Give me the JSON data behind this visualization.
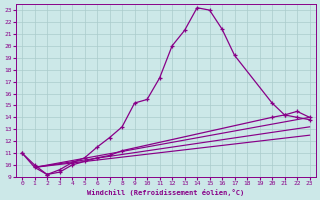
{
  "xlabel": "Windchill (Refroidissement éolien,°C)",
  "bg_color": "#cce8e8",
  "line_color": "#880088",
  "grid_color": "#aacccc",
  "xlim": [
    -0.5,
    23.5
  ],
  "ylim": [
    9,
    23.5
  ],
  "yticks": [
    9,
    10,
    11,
    12,
    13,
    14,
    15,
    16,
    17,
    18,
    19,
    20,
    21,
    22,
    23
  ],
  "xticks": [
    0,
    1,
    2,
    3,
    4,
    5,
    6,
    7,
    8,
    9,
    10,
    11,
    12,
    13,
    14,
    15,
    16,
    17,
    18,
    19,
    20,
    21,
    22,
    23
  ],
  "main_x": [
    0,
    1,
    2,
    3,
    4,
    5,
    6,
    7,
    8,
    9,
    10,
    11,
    12,
    13,
    14,
    15,
    16,
    17,
    20,
    21,
    22,
    23
  ],
  "main_y": [
    11.0,
    10.0,
    9.2,
    9.6,
    10.2,
    10.6,
    11.5,
    12.3,
    13.2,
    15.2,
    15.5,
    17.3,
    20.0,
    21.3,
    23.2,
    23.0,
    21.4,
    19.2,
    15.2,
    14.2,
    14.5,
    14.0
  ],
  "line2_x": [
    0,
    1,
    2,
    3,
    4,
    5,
    6,
    7,
    8,
    20,
    21,
    22,
    23
  ],
  "line2_y": [
    11.0,
    9.8,
    9.2,
    9.4,
    10.0,
    10.3,
    10.6,
    10.8,
    11.2,
    14.0,
    14.2,
    14.0,
    13.8
  ],
  "line3_x": [
    1,
    23
  ],
  "line3_y": [
    9.8,
    14.0
  ],
  "line4_x": [
    1,
    23
  ],
  "line4_y": [
    9.8,
    13.2
  ],
  "line5_x": [
    1,
    23
  ],
  "line5_y": [
    9.8,
    12.5
  ]
}
